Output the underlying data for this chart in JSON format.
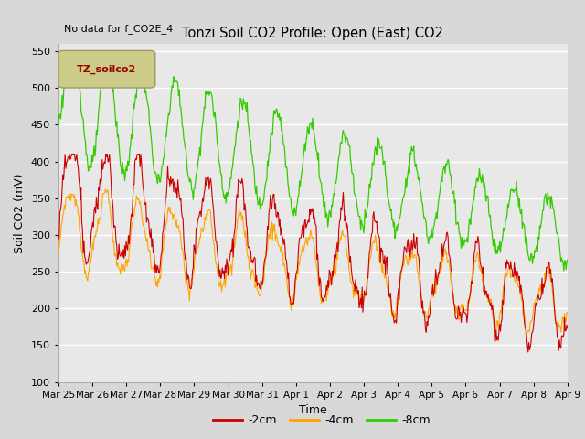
{
  "title": "Tonzi Soil CO2 Profile: Open (East) CO2",
  "subtitle": "No data for f_CO2E_4",
  "ylabel": "Soil CO2 (mV)",
  "xlabel": "Time",
  "ylim": [
    100,
    560
  ],
  "yticks": [
    100,
    150,
    200,
    250,
    300,
    350,
    400,
    450,
    500,
    550
  ],
  "legend_label_2cm": "-2cm",
  "legend_label_4cm": "-4cm",
  "legend_label_8cm": "-8cm",
  "color_2cm": "#cc0000",
  "color_4cm": "#ffa500",
  "color_8cm": "#33cc00",
  "fig_bg": "#d8d8d8",
  "plot_bg": "#e8e8e8",
  "legend_box_facecolor": "#cccc88",
  "legend_box_edgecolor": "#999966",
  "legend_text_color": "#990000",
  "xtick_labels": [
    "Mar 25",
    "Mar 26",
    "Mar 27",
    "Mar 28",
    "Mar 29",
    "Mar 30",
    "Mar 31",
    "Apr 1",
    "Apr 2",
    "Apr 3",
    "Apr 4",
    "Apr 5",
    "Apr 6",
    "Apr 7",
    "Apr 8",
    "Apr 9"
  ],
  "xtick_positions": [
    0,
    1,
    2,
    3,
    4,
    5,
    6,
    7,
    8,
    9,
    10,
    11,
    12,
    13,
    14,
    15
  ]
}
